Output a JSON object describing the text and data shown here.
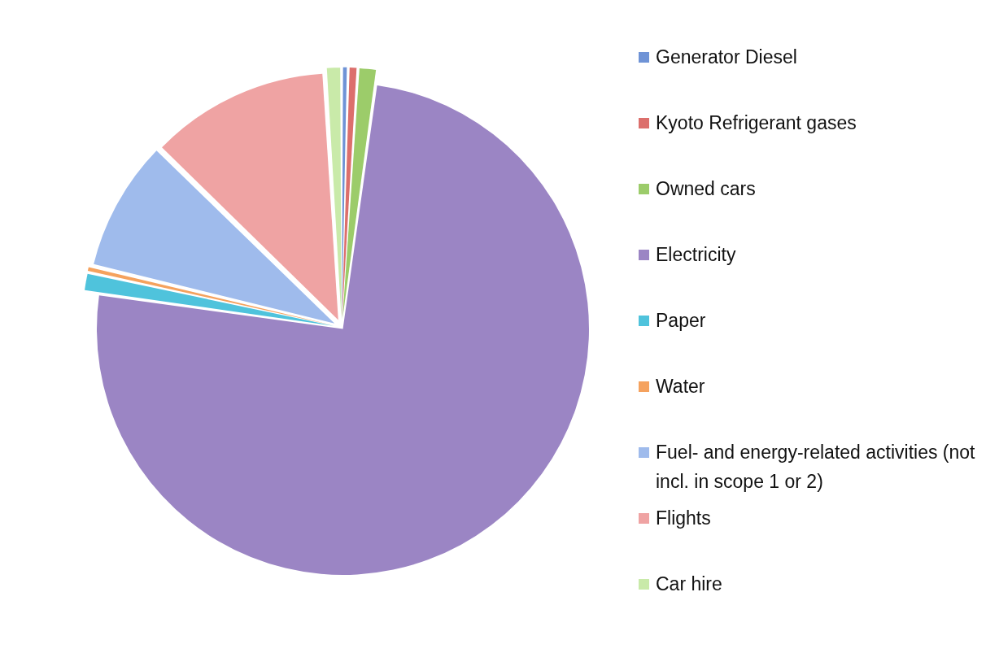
{
  "chart_data": {
    "type": "pie",
    "legend": "right",
    "categories": [
      "Generator Diesel",
      "Kyoto Refrigerant gases",
      "Owned cars",
      "Electricity",
      "Paper",
      "Water",
      "Fuel- and energy-related activities (not incl. in scope 1 or 2)",
      "Flights",
      "Car hire"
    ],
    "values": [
      0.4,
      0.6,
      1.2,
      75,
      1.2,
      0.4,
      8.5,
      11.7,
      1.0
    ],
    "colors": [
      "#6f93d6",
      "#dc6f6c",
      "#9ccc6a",
      "#9b85c4",
      "#4fc3dc",
      "#f5a25e",
      "#9fbbec",
      "#efa3a3",
      "#c9eaa9"
    ]
  }
}
